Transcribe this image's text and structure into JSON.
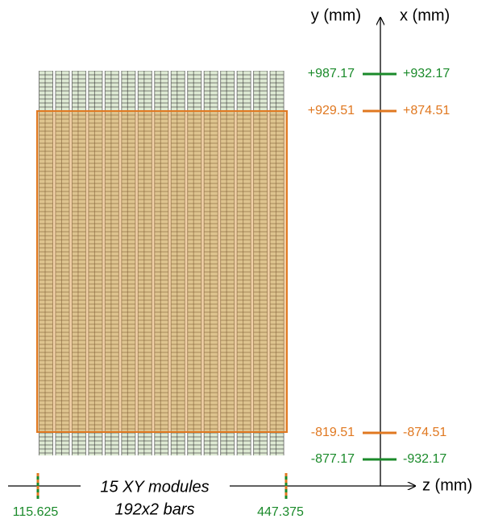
{
  "axes": {
    "y": "y (mm)",
    "x": "x (mm)",
    "z": "z (mm)"
  },
  "levels": [
    {
      "y": "+987.17",
      "x": "+932.17"
    },
    {
      "y": "+929.51",
      "x": "+874.51"
    },
    {
      "y": "-819.51",
      "x": "-874.51"
    },
    {
      "y": "-877.17",
      "x": "-932.17"
    }
  ],
  "z_marks": [
    "115.625",
    "447.375"
  ],
  "caption": {
    "modules": "15 XY modules",
    "bars": "192x2 bars"
  }
}
